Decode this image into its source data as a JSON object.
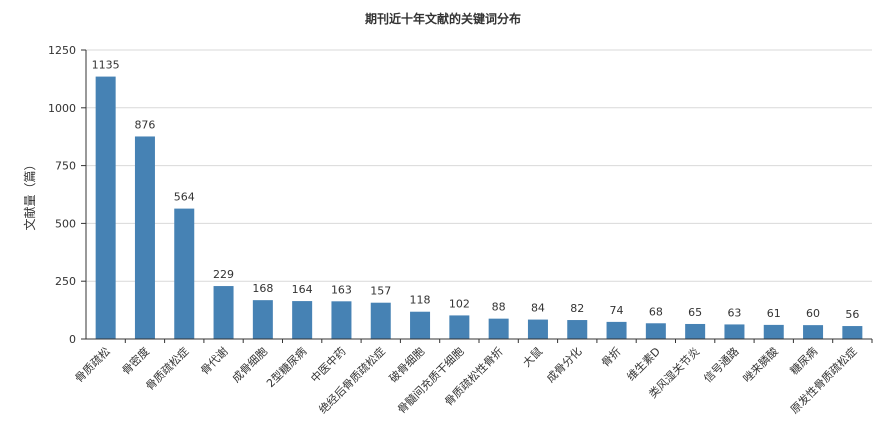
{
  "chart_data": {
    "type": "bar",
    "title": "期刊近十年文献的关键词分布",
    "xlabel": "",
    "ylabel": "文献量（篇）",
    "ylim": [
      0,
      1250
    ],
    "yticks": [
      0,
      250,
      500,
      750,
      1000,
      1250
    ],
    "grid": true,
    "bar_color": "#4682b4",
    "categories": [
      "骨质疏松",
      "骨密度",
      "骨质疏松症",
      "骨代谢",
      "成骨细胞",
      "2型糖尿病",
      "中医中药",
      "绝经后骨质疏松症",
      "破骨细胞",
      "骨髓间充质干细胞",
      "骨质疏松性骨折",
      "大鼠",
      "成骨分化",
      "骨折",
      "维生素D",
      "类风湿关节炎",
      "信号通路",
      "唑来膦酸",
      "糖尿病",
      "原发性骨质疏松症"
    ],
    "values": [
      1135,
      876,
      564,
      229,
      168,
      164,
      163,
      157,
      118,
      102,
      88,
      84,
      82,
      74,
      68,
      65,
      63,
      61,
      60,
      56
    ]
  }
}
